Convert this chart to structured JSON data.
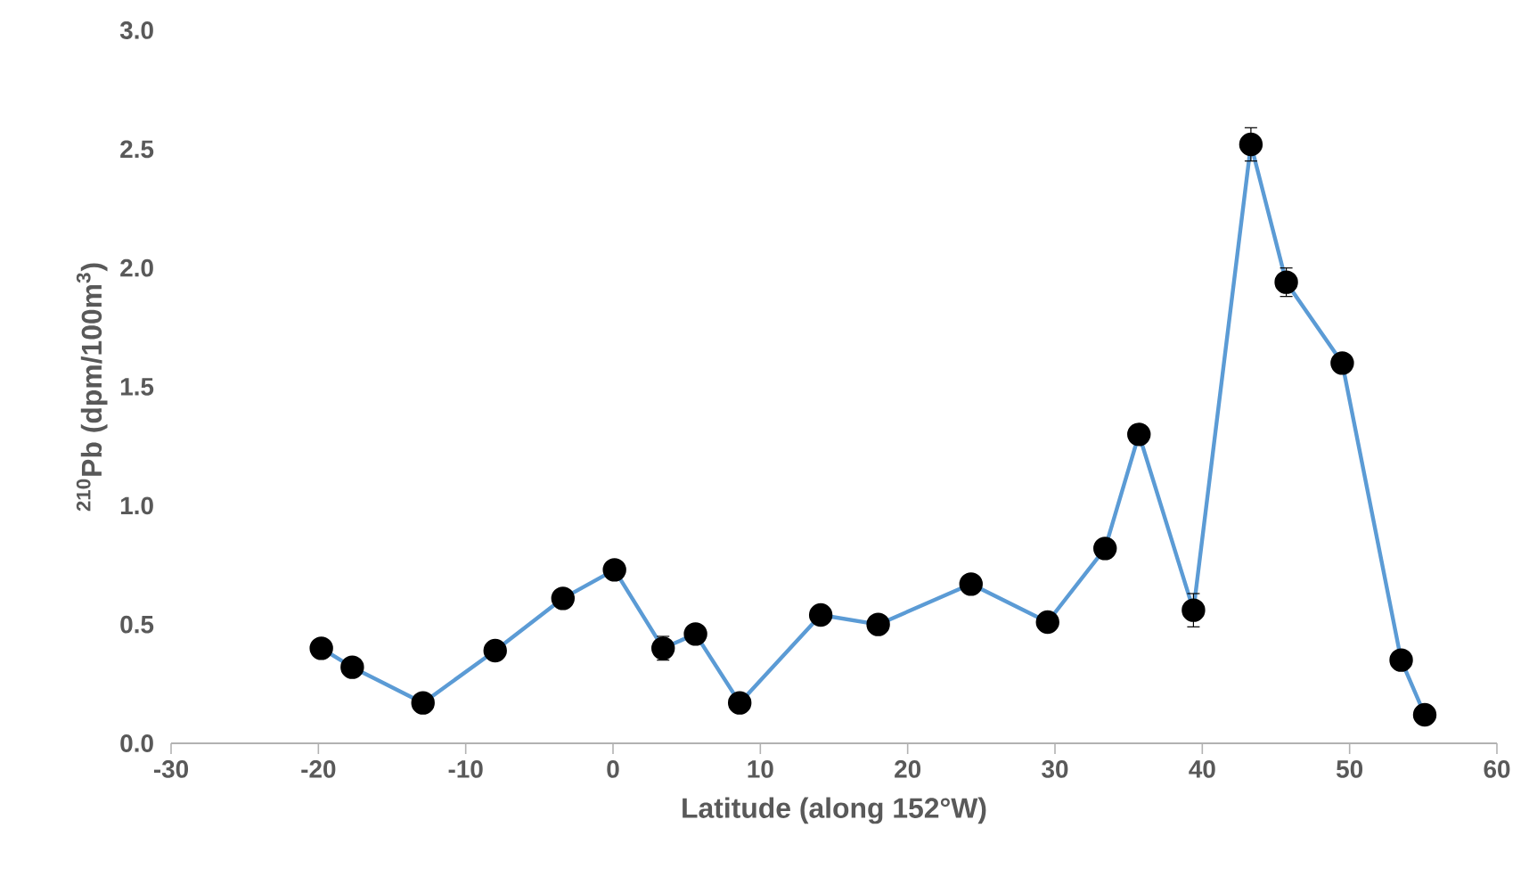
{
  "chart_data": {
    "type": "line",
    "xlabel": "Latitude (along 152°W)",
    "ylabel": "$^{210}$Pb (dpm/100m$^{3}$)",
    "x": [
      -19.8,
      -17.7,
      -12.9,
      -8.0,
      -3.4,
      0.1,
      3.4,
      5.6,
      8.6,
      14.1,
      18.0,
      24.3,
      29.5,
      33.4,
      35.7,
      39.4,
      43.3,
      45.7,
      49.5,
      53.5,
      55.1
    ],
    "series": [
      {
        "color": "#5b9bd5",
        "values": [
          0.4,
          0.32,
          0.17,
          0.39,
          0.61,
          0.73,
          0.4,
          0.46,
          0.17,
          0.54,
          0.5,
          0.67,
          0.51,
          0.82,
          1.3,
          0.56,
          2.52,
          1.94,
          1.6,
          0.35,
          0.12
        ],
        "errors": [
          null,
          null,
          null,
          null,
          null,
          null,
          0.05,
          null,
          null,
          null,
          null,
          null,
          null,
          0.04,
          0.04,
          0.07,
          0.07,
          0.06,
          null,
          null,
          null
        ]
      }
    ],
    "marker": "circle",
    "line_style": "solid",
    "grid": false,
    "xlim": [
      -30,
      60
    ],
    "xticks": [
      -30,
      -20,
      -10,
      0,
      10,
      20,
      30,
      40,
      50,
      60
    ],
    "ylim": [
      0,
      3
    ],
    "yticks": [
      {
        "value": 0,
        "label": "0.0"
      },
      {
        "value": 0.5,
        "label": "0.5"
      },
      {
        "value": 1,
        "label": "1.0"
      },
      {
        "value": 1.5,
        "label": "1.5"
      },
      {
        "value": 2,
        "label": "2.0"
      },
      {
        "value": 2.5,
        "label": "2.5"
      },
      {
        "value": 3,
        "label": "3.0"
      }
    ]
  }
}
